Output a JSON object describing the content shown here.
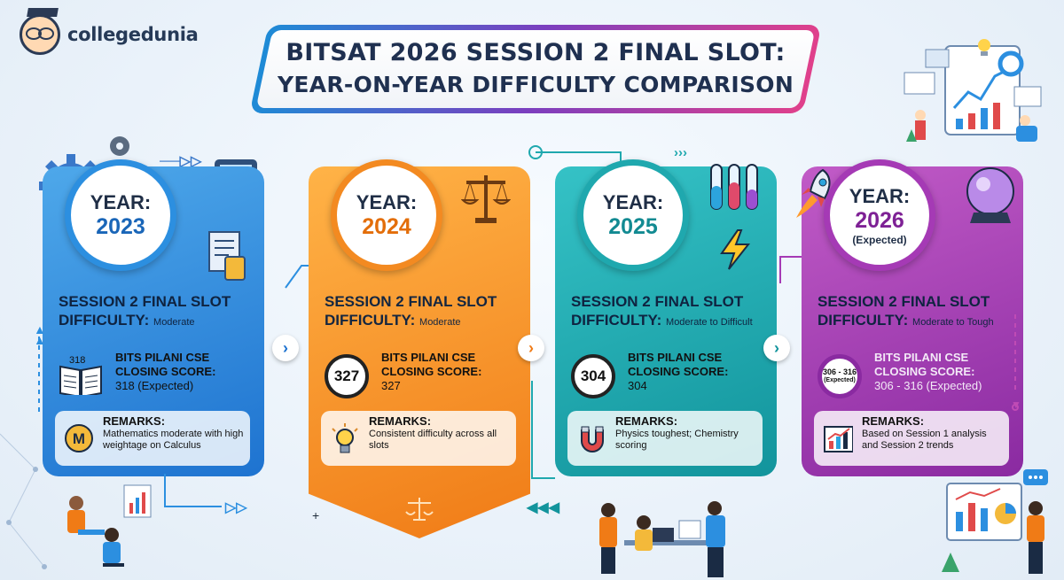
{
  "brand": {
    "name": "collegedunia"
  },
  "title": {
    "line1": "BITSAT 2026 SESSION 2 FINAL SLOT:",
    "line2": "YEAR-ON-YEAR DIFFICULTY COMPARISON"
  },
  "cards": [
    {
      "year_label": "YEAR:",
      "year": "2023",
      "year_sub": "",
      "session_line": "SESSION 2 FINAL SLOT",
      "difficulty_label": "DIFFICULTY:",
      "difficulty": "Moderate",
      "score_badge": "318",
      "score_title_1": "BITS PILANI CSE",
      "score_title_2": "CLOSING SCORE:",
      "score_value": "318 (Expected)",
      "remarks_title": "REMARKS:",
      "remarks": "Mathematics moderate with high weightage on Calculus",
      "remarks_icon": "M"
    },
    {
      "year_label": "YEAR:",
      "year": "2024",
      "year_sub": "",
      "session_line": "SESSION 2 FINAL SLOT",
      "difficulty_label": "DIFFICULTY:",
      "difficulty": "Moderate",
      "score_badge": "327",
      "score_title_1": "BITS PILANI CSE",
      "score_title_2": "CLOSING SCORE:",
      "score_value": "327",
      "remarks_title": "REMARKS:",
      "remarks": "Consistent difficulty across all slots",
      "remarks_icon": "bulb"
    },
    {
      "year_label": "YEAR:",
      "year": "2025",
      "year_sub": "",
      "session_line": "SESSION 2 FINAL SLOT",
      "difficulty_label": "DIFFICULTY:",
      "difficulty": "Moderate to Difficult",
      "score_badge": "304",
      "score_title_1": "BITS PILANI CSE",
      "score_title_2": "CLOSING SCORE:",
      "score_value": "304",
      "remarks_title": "REMARKS:",
      "remarks": "Physics toughest; Chemistry scoring",
      "remarks_icon": "magnet"
    },
    {
      "year_label": "YEAR:",
      "year": "2026",
      "year_sub": "(Expected)",
      "session_line": "SESSION 2 FINAL SLOT",
      "difficulty_label": "DIFFICULTY:",
      "difficulty": "Moderate to Tough",
      "score_badge": "306 - 316",
      "score_badge_sub": "(Expected)",
      "score_title_1": "BITS PILANI CSE",
      "score_title_2": "CLOSING SCORE:",
      "score_value": "306 - 316 (Expected)",
      "remarks_title": "REMARKS:",
      "remarks": "Based on Session 1 analysis and Session 2 trends",
      "remarks_icon": "chart"
    }
  ],
  "colors": {
    "card_2023": "#1e73d0",
    "card_2024": "#f07b16",
    "card_2025": "#12949c",
    "card_2026": "#8a2aa1"
  }
}
